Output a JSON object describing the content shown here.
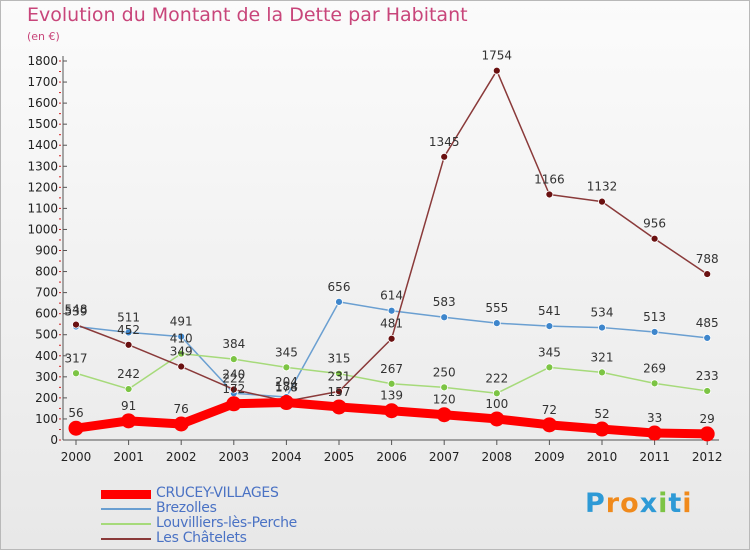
{
  "chart_title": "Evolution du Montant de la Dette par Habitant",
  "chart_unit": "(en €)",
  "logo_text": "Proxiti",
  "colors": {
    "title": "#c8457a",
    "axis_labels": "#333333",
    "legend_text": "#4a72c4"
  },
  "chart_data": {
    "type": "line",
    "title": "Evolution du Montant de la Dette par Habitant",
    "ylabel": "(en €)",
    "xlabel": "",
    "x": [
      "2000",
      "2001",
      "2002",
      "2003",
      "2004",
      "2005",
      "2006",
      "2007",
      "2008",
      "2009",
      "2010",
      "2011",
      "2012"
    ],
    "ylim": [
      0,
      1800
    ],
    "yticks": [
      0,
      100,
      200,
      300,
      400,
      500,
      600,
      700,
      800,
      900,
      1000,
      1100,
      1200,
      1300,
      1400,
      1500,
      1600,
      1700,
      1800
    ],
    "grid": false,
    "legend_position": "bottom-left",
    "series": [
      {
        "name": "CRUCEY-VILLAGES",
        "color": "#ff0000",
        "point_color": "#ff0000",
        "values": [
          56,
          91,
          76,
          172,
          178,
          157,
          139,
          120,
          100,
          72,
          52,
          33,
          29
        ],
        "labels": [
          "56",
          "91",
          "76",
          "172",
          "178",
          "157",
          "139",
          "120",
          "100",
          "72",
          "52",
          "33",
          "29"
        ]
      },
      {
        "name": "Brezolles",
        "color": "#6a9fd1",
        "point_color": "#3e86cc",
        "values": [
          539,
          511,
          491,
          222,
          204,
          656,
          614,
          583,
          555,
          541,
          534,
          513,
          485
        ],
        "labels": [
          "539",
          "511",
          "491",
          "222",
          "204",
          "656",
          "614",
          "583",
          "555",
          "541",
          "534",
          "513",
          "485"
        ]
      },
      {
        "name": "Louvilliers-lès-Perche",
        "color": "#a6da7a",
        "point_color": "#7cc444",
        "values": [
          317,
          242,
          410,
          384,
          345,
          315,
          267,
          250,
          222,
          345,
          321,
          269,
          233
        ],
        "labels": [
          "317",
          "242",
          "410",
          "384",
          "345",
          "315",
          "267",
          "250",
          "222",
          "345",
          "321",
          "269",
          "233"
        ]
      },
      {
        "name": "Les Châtelets",
        "color": "#8a3a3a",
        "point_color": "#6a1111",
        "values": [
          548,
          452,
          349,
          240,
          184,
          231,
          481,
          1345,
          1754,
          1166,
          1132,
          956,
          788
        ],
        "labels": [
          "548",
          "452",
          "349",
          "240",
          "184",
          "231",
          "481",
          "1345",
          "1754",
          "1166",
          "1132",
          "956",
          "788"
        ]
      }
    ]
  }
}
